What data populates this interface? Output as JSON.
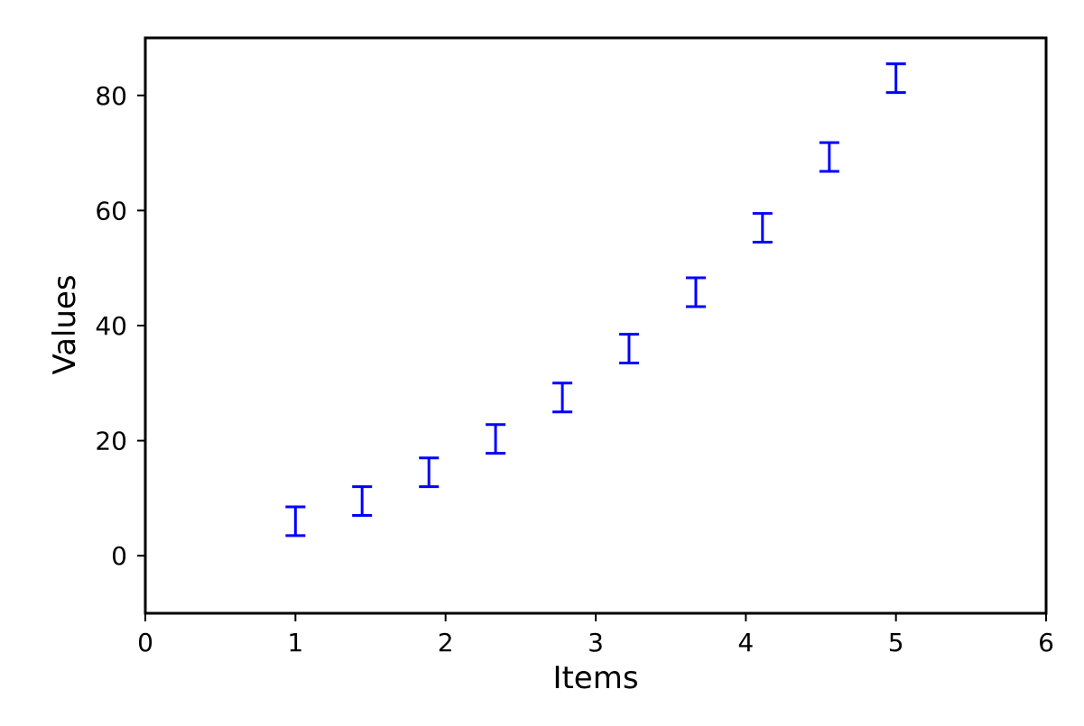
{
  "chart_data": {
    "type": "scatter",
    "title": "",
    "xlabel": "Items",
    "ylabel": "Values",
    "xlim": [
      0,
      6
    ],
    "ylim": [
      -10,
      90
    ],
    "x_ticks": [
      0,
      1,
      2,
      3,
      4,
      5,
      6
    ],
    "y_ticks": [
      0,
      20,
      40,
      60,
      80
    ],
    "grid": false,
    "legend": "none",
    "series": [
      {
        "marker": "error-bar",
        "color": "#0000ff",
        "x": [
          1.0,
          1.444,
          1.889,
          2.333,
          2.778,
          3.222,
          3.667,
          4.111,
          4.556,
          5.0
        ],
        "y": [
          6.0,
          9.5,
          14.5,
          20.3,
          27.5,
          36.0,
          45.8,
          57.0,
          69.3,
          83.0
        ],
        "yerr": [
          2.5,
          2.5,
          2.5,
          2.5,
          2.5,
          2.5,
          2.5,
          2.5,
          2.5,
          2.5
        ]
      }
    ]
  }
}
